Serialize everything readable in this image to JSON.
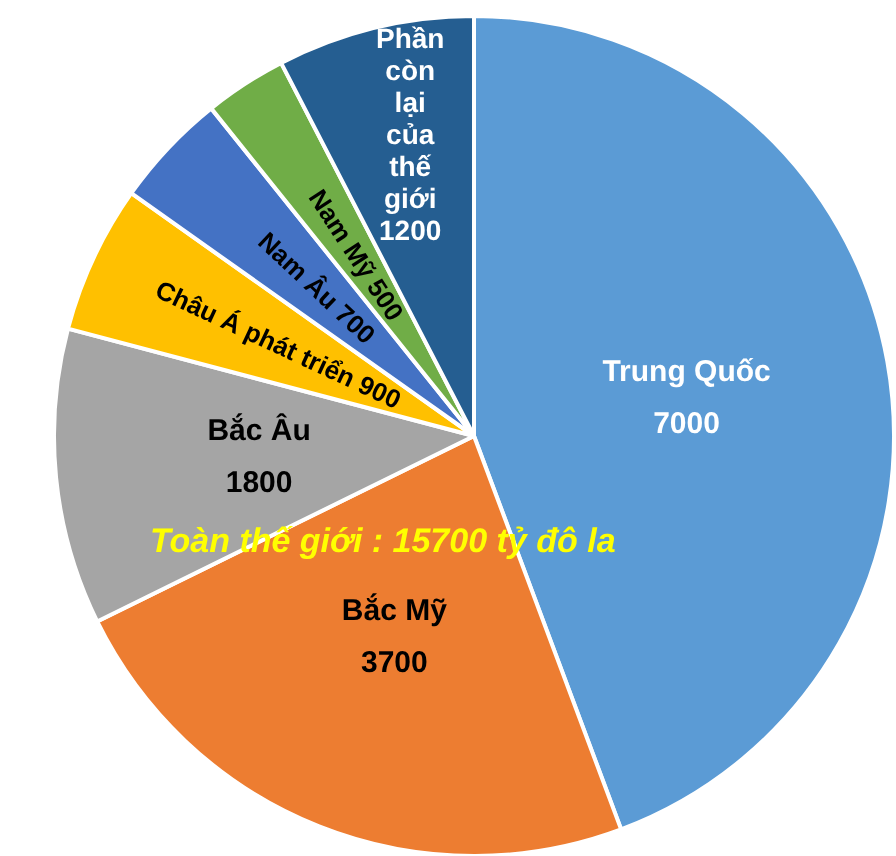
{
  "chart_data": {
    "type": "pie",
    "categories": [
      "Trung Quốc",
      "Bắc Mỹ",
      "Bắc Âu",
      "Châu Á phát triển",
      "Nam Âu",
      "Nam Mỹ",
      "Phần còn lại của thế giới"
    ],
    "values": [
      7000,
      3700,
      1800,
      900,
      700,
      500,
      1200
    ],
    "colors": [
      "#5b9bd5",
      "#ed7d31",
      "#a5a5a5",
      "#ffc000",
      "#4472c4",
      "#70ad47",
      "#255e91"
    ],
    "data_labels": true,
    "annotations": [
      "Toàn thế giới : 15700 tỷ đô la"
    ]
  }
}
